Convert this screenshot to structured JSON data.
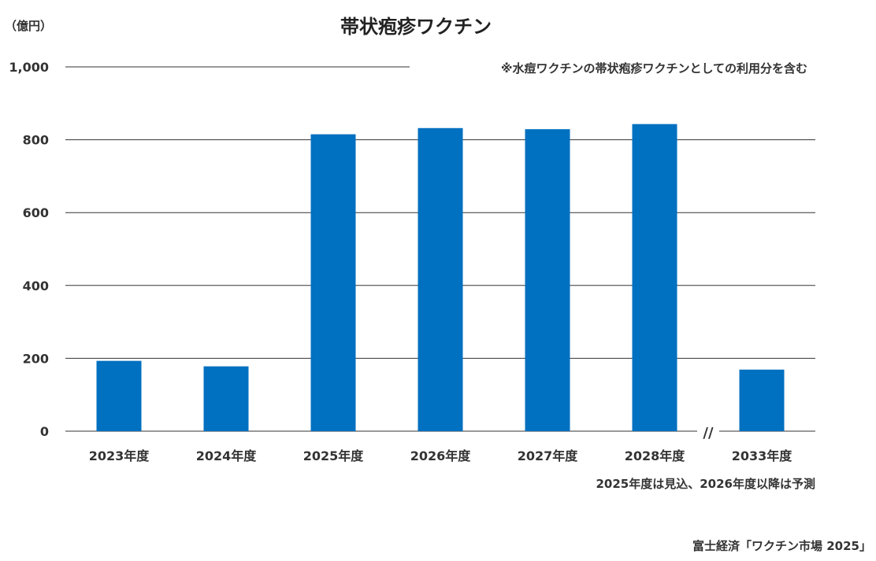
{
  "chart_data": {
    "type": "bar",
    "title": "帯状疱疹ワクチン",
    "ylabel": "（億円）",
    "categories": [
      "2023年度",
      "2024年度",
      "2025年度",
      "2026年度",
      "2027年度",
      "2028年度",
      "2033年度"
    ],
    "values": [
      193,
      178,
      815,
      832,
      829,
      843,
      169
    ],
    "ylim": [
      0,
      1000
    ],
    "yticks": [
      0,
      200,
      400,
      600,
      800,
      1000
    ],
    "ytick_labels": [
      "0",
      "200",
      "400",
      "600",
      "800",
      "1,000"
    ],
    "grid": true,
    "axis_break_label": "//",
    "bar_color": "#0070c0",
    "note_top": "※水痘ワクチンの帯状疱疹ワクチンとしての利用分を含む",
    "note_bottom": "2025年度は見込、2026年度以降は予測",
    "source": "富士経済「ワクチン市場 2025」"
  }
}
